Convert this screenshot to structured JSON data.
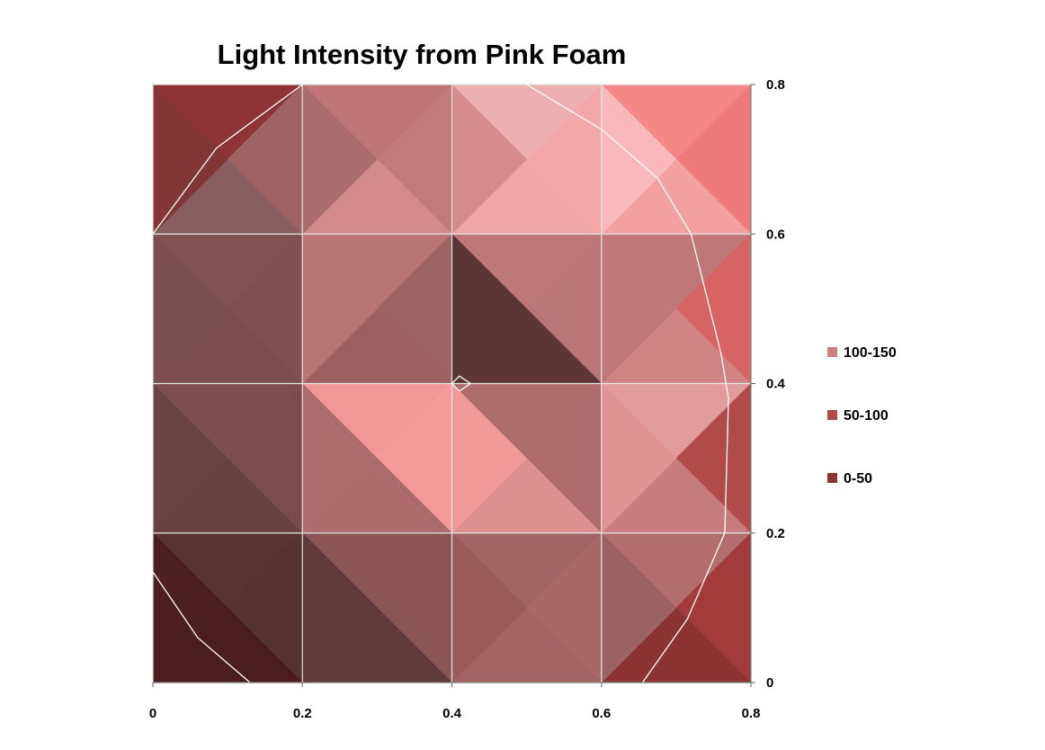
{
  "chart_data": {
    "type": "heatmap",
    "subtype": "surface-contour",
    "title": "Light Intensity from Pink Foam",
    "xlabel": "",
    "ylabel": "",
    "x": [
      0,
      0.2,
      0.4,
      0.6,
      0.8
    ],
    "y": [
      0,
      0.2,
      0.4,
      0.6,
      0.8
    ],
    "x_tick_labels": [
      "0",
      "0.2",
      "0.4",
      "0.6",
      "0.8"
    ],
    "y_tick_labels": [
      "0",
      "0.2",
      "0.4",
      "0.6",
      "0.8"
    ],
    "xlim": [
      0,
      0.8
    ],
    "ylim": [
      0,
      0.8
    ],
    "y_axis_position": "right",
    "grid": true,
    "legend_position": "right",
    "series": [
      {
        "name": "100-150",
        "color": "#cc7e80"
      },
      {
        "name": "50-100",
        "color": "#b24a4c"
      },
      {
        "name": "0-50",
        "color": "#8f3436"
      }
    ],
    "cells": [
      {
        "x": 0.0,
        "y": 0.6,
        "colors": {
          "top": "#8e3436",
          "right": "#a06364",
          "bottom": "#8a5e60",
          "left": "#823636"
        }
      },
      {
        "x": 0.2,
        "y": 0.6,
        "colors": {
          "top": "#bf7476",
          "right": "#c27a7b",
          "bottom": "#d58a8b",
          "left": "#a86c6c"
        }
      },
      {
        "x": 0.4,
        "y": 0.6,
        "colors": {
          "top": "#ecb0b0",
          "right": "#f3a7a8",
          "bottom": "#f0a6a6",
          "left": "#d58a8b"
        }
      },
      {
        "x": 0.6,
        "y": 0.6,
        "colors": {
          "top": "#f48887",
          "right": "#ec7b7a",
          "bottom": "#f2a0a0",
          "left": "#f9b8b9"
        }
      },
      {
        "x": 0.0,
        "y": 0.4,
        "colors": {
          "top": "#825252",
          "right": "#7f5050",
          "bottom": "#7b4d4e",
          "left": "#7a4e4f"
        }
      },
      {
        "x": 0.2,
        "y": 0.4,
        "colors": {
          "top": "#b87574",
          "right": "#9c6363",
          "bottom": "#9d6060",
          "left": "#b77574"
        }
      },
      {
        "x": 0.4,
        "y": 0.4,
        "colors": {
          "top": "#be7878",
          "right": "#bb7677",
          "bottom": "#5e3536",
          "left": "#5a3536"
        }
      },
      {
        "x": 0.6,
        "y": 0.4,
        "colors": {
          "top": "#bf7877",
          "right": "#d56462",
          "bottom": "#d08383",
          "left": "#c07979"
        }
      },
      {
        "x": 0.0,
        "y": 0.2,
        "colors": {
          "top": "#7e4f4e",
          "right": "#7b4c4b",
          "bottom": "#6a4141",
          "left": "#6b4343"
        }
      },
      {
        "x": 0.2,
        "y": 0.2,
        "colors": {
          "top": "#f09898",
          "right": "#f29b9a",
          "bottom": "#ad6b6b",
          "left": "#ae6c6d"
        }
      },
      {
        "x": 0.4,
        "y": 0.2,
        "colors": {
          "top": "#ad6d6b",
          "right": "#ae6d6c",
          "bottom": "#dc9190",
          "left": "#f09999"
        }
      },
      {
        "x": 0.6,
        "y": 0.2,
        "colors": {
          "top": "#e19b9b",
          "right": "#b14a4a",
          "bottom": "#c77d7d",
          "left": "#e09393"
        }
      },
      {
        "x": 0.0,
        "y": 0.0,
        "colors": {
          "top": "#573333",
          "right": "#543232",
          "bottom": "#4b1d1f",
          "left": "#4e1f20"
        }
      },
      {
        "x": 0.2,
        "y": 0.0,
        "colors": {
          "top": "#8b5653",
          "right": "#8a5552",
          "bottom": "#5f3b3b",
          "left": "#603b3b"
        }
      },
      {
        "x": 0.4,
        "y": 0.0,
        "colors": {
          "top": "#a06462",
          "right": "#a86866",
          "bottom": "#a26563",
          "left": "#9a5c5b"
        }
      },
      {
        "x": 0.6,
        "y": 0.0,
        "colors": {
          "top": "#b36d6c",
          "right": "#a33a3c",
          "bottom": "#8c3434",
          "left": "#9a6260"
        }
      }
    ],
    "contours": [
      {
        "points": [
          [
            0,
            0.6
          ],
          [
            0.085,
            0.715
          ],
          [
            0.2,
            0.8
          ]
        ]
      },
      {
        "points": [
          [
            0.5,
            0.8
          ],
          [
            0.6,
            0.74
          ],
          [
            0.675,
            0.675
          ],
          [
            0.72,
            0.6
          ],
          [
            0.76,
            0.44
          ],
          [
            0.77,
            0.38
          ],
          [
            0.765,
            0.2
          ],
          [
            0.715,
            0.085
          ],
          [
            0.655,
            0
          ]
        ]
      },
      {
        "points": [
          [
            0,
            0.148
          ],
          [
            0.06,
            0.06
          ],
          [
            0.13,
            0
          ]
        ]
      },
      {
        "points": [
          [
            0.4,
            0.4
          ],
          [
            0.41,
            0.41
          ],
          [
            0.425,
            0.4
          ],
          [
            0.41,
            0.39
          ],
          [
            0.4,
            0.4
          ]
        ]
      }
    ]
  }
}
